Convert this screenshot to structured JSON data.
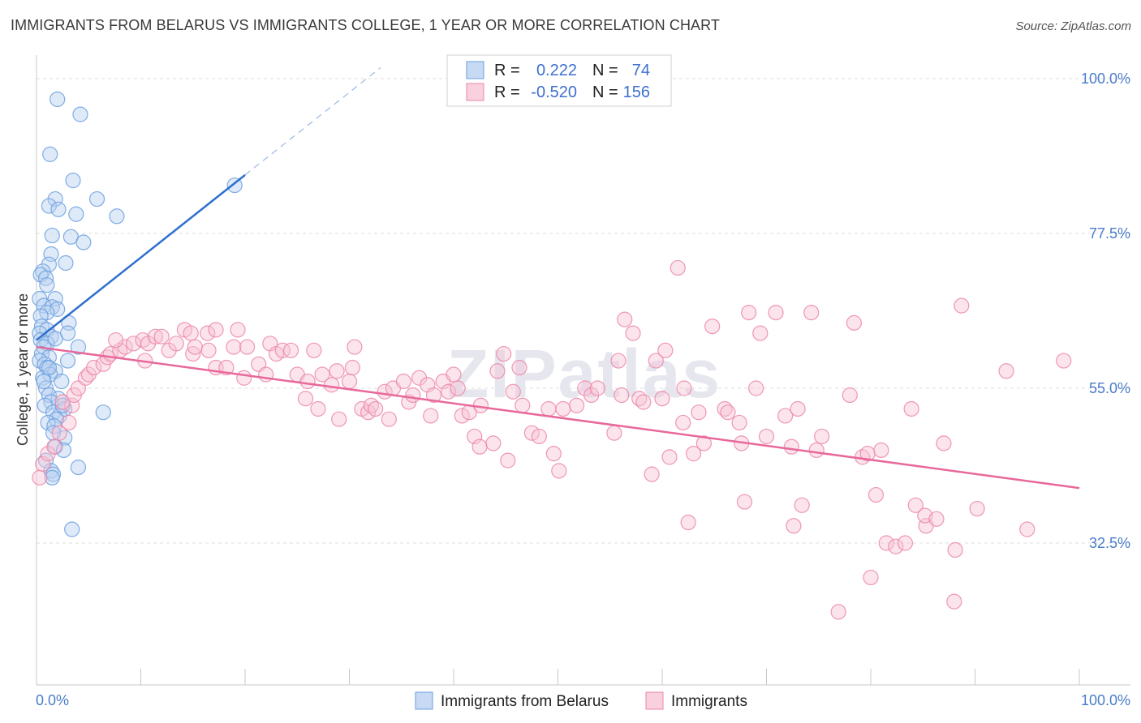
{
  "title": "IMMIGRANTS FROM BELARUS VS IMMIGRANTS COLLEGE, 1 YEAR OR MORE CORRELATION CHART",
  "source": "Source: ZipAtlas.com",
  "watermark": "ZIPatlas",
  "chart_data": {
    "type": "scatter",
    "ylabel": "College, 1 year or more",
    "xlim": [
      0,
      100
    ],
    "ylim": [
      10,
      105
    ],
    "x_tick_labels": [
      "0.0%",
      "100.0%"
    ],
    "y_ticks": [
      {
        "value": 100,
        "label": "100.0%"
      },
      {
        "value": 77.5,
        "label": "77.5%"
      },
      {
        "value": 55,
        "label": "55.0%"
      },
      {
        "value": 32.5,
        "label": "32.5%"
      }
    ],
    "grid": "horizontal-dashed",
    "legend_position": "top-center",
    "stats": [
      {
        "r_label": "R =",
        "r": "0.222",
        "n_label": "N =",
        "n": "74"
      },
      {
        "r_label": "R =",
        "r": "-0.520",
        "n_label": "N =",
        "n": "156"
      }
    ],
    "series": [
      {
        "name": "Immigrants from Belarus",
        "color": "#6a9fe0",
        "fill": "#b9d0f0",
        "trend": {
          "x0": 0,
          "y0": 62,
          "x1": 20,
          "y1": 86,
          "dash_to_x": 33,
          "dash_to_y": 101.6
        },
        "points": [
          [
            2,
            97
          ],
          [
            4.2,
            94.8
          ],
          [
            1.3,
            89
          ],
          [
            3.5,
            85.2
          ],
          [
            1.8,
            82.5
          ],
          [
            5.8,
            82.5
          ],
          [
            1.2,
            81.5
          ],
          [
            2.1,
            81
          ],
          [
            3.8,
            80.3
          ],
          [
            7.7,
            80
          ],
          [
            1.5,
            77.2
          ],
          [
            3.3,
            77
          ],
          [
            4.5,
            76.2
          ],
          [
            1.4,
            74.5
          ],
          [
            2.8,
            73.2
          ],
          [
            1.2,
            73
          ],
          [
            0.6,
            72
          ],
          [
            0.4,
            71.5
          ],
          [
            0.9,
            71
          ],
          [
            1,
            70
          ],
          [
            1.8,
            68
          ],
          [
            0.3,
            68
          ],
          [
            0.7,
            67
          ],
          [
            1.5,
            66.8
          ],
          [
            2,
            66.5
          ],
          [
            1,
            66
          ],
          [
            0.4,
            65.5
          ],
          [
            3.1,
            64.5
          ],
          [
            0.5,
            64
          ],
          [
            1,
            63.5
          ],
          [
            0.3,
            63
          ],
          [
            3,
            63
          ],
          [
            1.4,
            62.5
          ],
          [
            0.4,
            62
          ],
          [
            1,
            61.5
          ],
          [
            0.7,
            61
          ],
          [
            4,
            61
          ],
          [
            0.5,
            60
          ],
          [
            1.2,
            59.5
          ],
          [
            0.3,
            59
          ],
          [
            3,
            59
          ],
          [
            0.8,
            58.5
          ],
          [
            1,
            58
          ],
          [
            1.8,
            57.5
          ],
          [
            1.3,
            57
          ],
          [
            0.6,
            56.5
          ],
          [
            2.4,
            56
          ],
          [
            0.9,
            55
          ],
          [
            1.2,
            54
          ],
          [
            2.1,
            53.5
          ],
          [
            1.4,
            53
          ],
          [
            0.8,
            52.5
          ],
          [
            2.7,
            52
          ],
          [
            1.6,
            51.5
          ],
          [
            2.2,
            51
          ],
          [
            6.4,
            51.5
          ],
          [
            1.9,
            50.5
          ],
          [
            1.1,
            50
          ],
          [
            1.7,
            49.5
          ],
          [
            1.6,
            48.5
          ],
          [
            2.7,
            47.8
          ],
          [
            1.8,
            46.5
          ],
          [
            2.6,
            46
          ],
          [
            0.9,
            44.5
          ],
          [
            4,
            43.5
          ],
          [
            1.4,
            43
          ],
          [
            1.6,
            42.5
          ],
          [
            1.5,
            42
          ],
          [
            3.4,
            34.5
          ],
          [
            1.2,
            58
          ],
          [
            2.5,
            52.5
          ],
          [
            0.7,
            56
          ],
          [
            1.8,
            62.2
          ],
          [
            19,
            84.5
          ]
        ]
      },
      {
        "name": "Immigrants",
        "color": "#ec86a8",
        "fill": "#f7c4d5",
        "trend": {
          "x0": 0,
          "y0": 61,
          "x1": 100,
          "y1": 40.5
        },
        "points": [
          [
            0.3,
            42
          ],
          [
            0.6,
            44
          ],
          [
            1.1,
            45.5
          ],
          [
            1.7,
            46.5
          ],
          [
            2.2,
            48.5
          ],
          [
            3.1,
            50
          ],
          [
            3.4,
            52.5
          ],
          [
            2.5,
            53
          ],
          [
            3.6,
            54
          ],
          [
            4,
            55
          ],
          [
            4.7,
            56.5
          ],
          [
            5,
            57
          ],
          [
            5.5,
            58
          ],
          [
            6.4,
            58.5
          ],
          [
            6.8,
            59.5
          ],
          [
            7.1,
            60
          ],
          [
            8,
            60.5
          ],
          [
            8.5,
            61
          ],
          [
            7.6,
            62
          ],
          [
            9.3,
            61.5
          ],
          [
            10.2,
            62
          ],
          [
            10.4,
            59
          ],
          [
            10.7,
            61.5
          ],
          [
            11.4,
            62.5
          ],
          [
            12,
            62.5
          ],
          [
            12.7,
            60.5
          ],
          [
            13.4,
            61.5
          ],
          [
            14.2,
            63.5
          ],
          [
            14.8,
            63
          ],
          [
            15,
            60
          ],
          [
            15.2,
            61
          ],
          [
            16.4,
            63
          ],
          [
            17.2,
            63.5
          ],
          [
            16.5,
            60.5
          ],
          [
            17.2,
            58
          ],
          [
            18.2,
            58
          ],
          [
            18.9,
            61
          ],
          [
            19.3,
            63.5
          ],
          [
            19.9,
            56.5
          ],
          [
            20.2,
            61
          ],
          [
            21.3,
            58.5
          ],
          [
            22,
            57
          ],
          [
            22.4,
            61.5
          ],
          [
            23,
            60
          ],
          [
            23.6,
            60.5
          ],
          [
            24.4,
            60.5
          ],
          [
            25,
            57
          ],
          [
            25.8,
            53.5
          ],
          [
            26,
            56
          ],
          [
            26.6,
            60.5
          ],
          [
            27,
            52
          ],
          [
            27.4,
            57
          ],
          [
            28.3,
            55.5
          ],
          [
            28.8,
            57.5
          ],
          [
            29,
            50.5
          ],
          [
            30,
            56
          ],
          [
            30.5,
            61
          ],
          [
            30.3,
            58
          ],
          [
            31.2,
            52
          ],
          [
            31.8,
            51.5
          ],
          [
            32.1,
            52.5
          ],
          [
            32.5,
            52
          ],
          [
            33.4,
            54.5
          ],
          [
            33.8,
            50.5
          ],
          [
            34.2,
            55
          ],
          [
            35.2,
            56
          ],
          [
            35.7,
            53
          ],
          [
            36.1,
            54
          ],
          [
            36.7,
            56.5
          ],
          [
            37.5,
            55.5
          ],
          [
            37.8,
            51
          ],
          [
            38.1,
            54
          ],
          [
            39,
            56
          ],
          [
            39.5,
            54.5
          ],
          [
            40,
            57
          ],
          [
            40.4,
            55
          ],
          [
            40.8,
            51
          ],
          [
            41.5,
            51.5
          ],
          [
            42,
            48
          ],
          [
            42.5,
            46.5
          ],
          [
            42.6,
            52.5
          ],
          [
            43.8,
            47
          ],
          [
            44.2,
            57.5
          ],
          [
            44.8,
            60
          ],
          [
            45.2,
            44.5
          ],
          [
            45.7,
            54.5
          ],
          [
            46.3,
            58
          ],
          [
            46.6,
            52.5
          ],
          [
            47.5,
            48.5
          ],
          [
            48.2,
            48
          ],
          [
            49.1,
            52
          ],
          [
            49.6,
            45.5
          ],
          [
            50.1,
            43
          ],
          [
            50.5,
            52
          ],
          [
            51.8,
            52.5
          ],
          [
            52.6,
            55
          ],
          [
            53.2,
            54
          ],
          [
            53.8,
            55
          ],
          [
            55.4,
            48.5
          ],
          [
            55.8,
            59
          ],
          [
            56.1,
            54
          ],
          [
            56.4,
            65
          ],
          [
            57.2,
            63
          ],
          [
            57.8,
            53.5
          ],
          [
            58.2,
            53
          ],
          [
            59,
            42.5
          ],
          [
            59.4,
            59
          ],
          [
            60,
            53.5
          ],
          [
            60.3,
            60.5
          ],
          [
            60.7,
            45
          ],
          [
            61.5,
            72.5
          ],
          [
            62.1,
            55
          ],
          [
            62,
            50
          ],
          [
            62.5,
            35.5
          ],
          [
            63,
            45.5
          ],
          [
            63.5,
            51.5
          ],
          [
            64,
            47
          ],
          [
            64.8,
            64
          ],
          [
            66,
            52
          ],
          [
            66.3,
            51.5
          ],
          [
            67.4,
            50
          ],
          [
            67.6,
            47
          ],
          [
            67.9,
            38.5
          ],
          [
            68.3,
            66
          ],
          [
            69,
            55
          ],
          [
            69.4,
            63
          ],
          [
            70,
            48
          ],
          [
            70.9,
            66
          ],
          [
            71.8,
            51
          ],
          [
            72.4,
            46.5
          ],
          [
            72.6,
            35
          ],
          [
            73,
            52
          ],
          [
            73.4,
            38
          ],
          [
            74.3,
            66
          ],
          [
            74.8,
            46
          ],
          [
            75.3,
            48
          ],
          [
            76.9,
            22.5
          ],
          [
            78,
            54
          ],
          [
            78.4,
            64.5
          ],
          [
            79.2,
            45
          ],
          [
            79.7,
            45.5
          ],
          [
            80,
            27.5
          ],
          [
            80.5,
            39.5
          ],
          [
            81,
            46
          ],
          [
            81.5,
            32.5
          ],
          [
            82.4,
            32
          ],
          [
            83.3,
            32.5
          ],
          [
            83.9,
            52
          ],
          [
            84.3,
            38
          ],
          [
            85.3,
            35
          ],
          [
            85.2,
            36.5
          ],
          [
            86.3,
            36
          ],
          [
            87,
            47
          ],
          [
            88,
            24
          ],
          [
            88.1,
            31.5
          ],
          [
            88.7,
            67
          ],
          [
            90.2,
            37.5
          ],
          [
            93,
            57.5
          ],
          [
            95,
            34.5
          ],
          [
            98.5,
            59
          ]
        ]
      }
    ]
  }
}
